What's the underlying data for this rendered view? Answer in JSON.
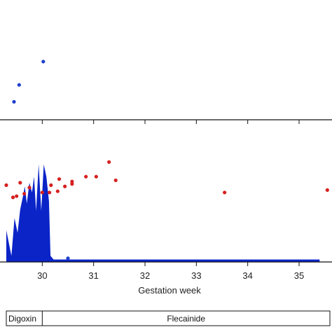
{
  "chart_data": [
    {
      "panel": "upper",
      "type": "scatter",
      "x_range": [
        29.3,
        35.6
      ],
      "y_range": [
        0,
        1
      ],
      "ticks": [
        30,
        31,
        32,
        33,
        34,
        35
      ],
      "series": [
        {
          "color": "#1f3fcf",
          "points": [
            {
              "x": 29.45,
              "y": 0.17
            },
            {
              "x": 29.55,
              "y": 0.33
            },
            {
              "x": 30.02,
              "y": 0.55
            }
          ]
        }
      ]
    },
    {
      "panel": "lower",
      "type": "scatter+area",
      "xlabel": "Gestation week",
      "x_range": [
        29.3,
        35.6
      ],
      "y_range": [
        0,
        1
      ],
      "ticks": [
        30,
        31,
        32,
        33,
        34,
        35
      ],
      "tick_labels": [
        "30",
        "31",
        "32",
        "33",
        "34",
        "35"
      ],
      "area": {
        "color": "#0a24c8",
        "points": [
          {
            "x": 29.3,
            "y": 0.0
          },
          {
            "x": 29.3,
            "y": 0.26
          },
          {
            "x": 29.4,
            "y": 0.05
          },
          {
            "x": 29.46,
            "y": 0.36
          },
          {
            "x": 29.52,
            "y": 0.24
          },
          {
            "x": 29.57,
            "y": 0.43
          },
          {
            "x": 29.62,
            "y": 0.53
          },
          {
            "x": 29.66,
            "y": 0.62
          },
          {
            "x": 29.7,
            "y": 0.48
          },
          {
            "x": 29.75,
            "y": 0.65
          },
          {
            "x": 29.8,
            "y": 0.57
          },
          {
            "x": 29.84,
            "y": 0.7
          },
          {
            "x": 29.88,
            "y": 0.42
          },
          {
            "x": 29.93,
            "y": 0.8
          },
          {
            "x": 29.98,
            "y": 0.42
          },
          {
            "x": 30.03,
            "y": 0.8
          },
          {
            "x": 30.08,
            "y": 0.7
          },
          {
            "x": 30.13,
            "y": 0.5
          },
          {
            "x": 30.16,
            "y": 0.05
          },
          {
            "x": 30.22,
            "y": 0.02
          },
          {
            "x": 30.5,
            "y": 0.02
          },
          {
            "x": 35.4,
            "y": 0.02
          },
          {
            "x": 35.4,
            "y": 0.0
          }
        ]
      },
      "series": [
        {
          "color": "#d62020",
          "points": [
            {
              "x": 29.3,
              "y": 0.63
            },
            {
              "x": 29.43,
              "y": 0.53
            },
            {
              "x": 29.5,
              "y": 0.54
            },
            {
              "x": 29.57,
              "y": 0.65
            },
            {
              "x": 29.65,
              "y": 0.56
            },
            {
              "x": 29.75,
              "y": 0.61
            },
            {
              "x": 30.0,
              "y": 0.57
            },
            {
              "x": 30.14,
              "y": 0.57
            },
            {
              "x": 30.17,
              "y": 0.63
            },
            {
              "x": 30.3,
              "y": 0.58
            },
            {
              "x": 30.33,
              "y": 0.68
            },
            {
              "x": 30.44,
              "y": 0.62
            },
            {
              "x": 30.58,
              "y": 0.64
            },
            {
              "x": 30.58,
              "y": 0.66
            },
            {
              "x": 30.85,
              "y": 0.7
            },
            {
              "x": 31.05,
              "y": 0.7
            },
            {
              "x": 31.3,
              "y": 0.82
            },
            {
              "x": 31.43,
              "y": 0.67
            },
            {
              "x": 33.55,
              "y": 0.57
            },
            {
              "x": 35.55,
              "y": 0.59
            }
          ]
        },
        {
          "color": "#1f3fcf",
          "points": [
            {
              "x": 30.5,
              "y": 0.03
            }
          ]
        }
      ]
    }
  ],
  "treatment_bar": {
    "segments": [
      {
        "label": "Digoxin",
        "x_start": 29.3,
        "x_end": 30.0
      },
      {
        "label": "Flecainide",
        "x_start": 30.0,
        "x_end": 35.6
      }
    ]
  }
}
